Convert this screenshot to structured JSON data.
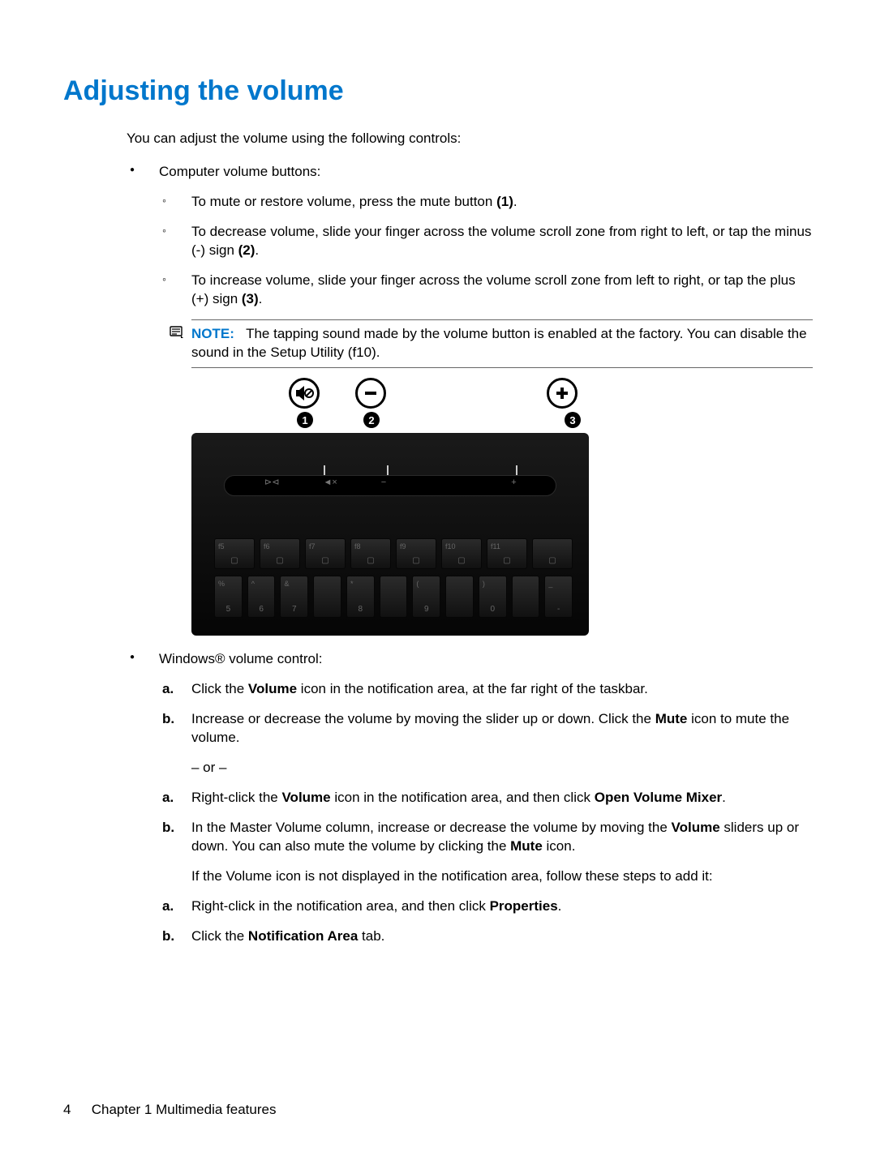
{
  "heading": "Adjusting the volume",
  "intro": "You can adjust the volume using the following controls:",
  "bullets": {
    "computer_label": "Computer volume buttons:",
    "sub": {
      "mute_a": "To mute or restore volume, press the mute button ",
      "mute_b": "(1)",
      "mute_c": ".",
      "dec_a": "To decrease volume, slide your finger across the volume scroll zone from right to left, or tap the minus (-) sign ",
      "dec_b": "(2)",
      "dec_c": ".",
      "inc_a": "To increase volume, slide your finger across the volume scroll zone from left to right, or tap the plus (+) sign ",
      "inc_b": "(3)",
      "inc_c": "."
    },
    "note_label": "NOTE:",
    "note_text": "The tapping sound made by the volume button is enabled at the factory. You can disable the sound in the Setup Utility (f10).",
    "windows_label": "Windows® volume control:",
    "win1": {
      "a1": "Click the ",
      "a2": "Volume",
      "a3": " icon in the notification area, at the far right of the taskbar.",
      "b1": "Increase or decrease the volume by moving the slider up or down. Click the ",
      "b2": "Mute",
      "b3": " icon to mute the volume."
    },
    "or": "– or –",
    "win2": {
      "a1": "Right-click the ",
      "a2": "Volume",
      "a3": " icon in the notification area, and then click ",
      "a4": "Open Volume Mixer",
      "a5": ".",
      "b1": "In the Master Volume column, increase or decrease the volume by moving the ",
      "b2": "Volume",
      "b3": " sliders up or down. You can also mute the volume by clicking the ",
      "b4": "Mute",
      "b5": " icon."
    },
    "subintro": "If the Volume icon is not displayed in the notification area, follow these steps to add it:",
    "win3": {
      "a1": "Right-click in the notification area, and then click ",
      "a2": "Properties",
      "a3": ".",
      "b1": "Click the ",
      "b2": "Notification Area",
      "b3": " tab."
    }
  },
  "figure": {
    "callouts": [
      "1",
      "2",
      "3"
    ],
    "fkeys_top": [
      "f5",
      "f6",
      "f7",
      "f8",
      "f9",
      "f10",
      "f11",
      ""
    ],
    "numrow_top": [
      "%",
      "^",
      "&",
      "",
      "*",
      "",
      "(",
      "",
      ")",
      "",
      "_"
    ],
    "numrow_bot": [
      "5",
      "6",
      "7",
      "",
      "8",
      "",
      "9",
      "",
      "0",
      "",
      "-"
    ]
  },
  "footer": {
    "page": "4",
    "chapter": "Chapter 1   Multimedia features"
  },
  "colors": {
    "heading": "#0077cc",
    "text": "#000000",
    "rule": "#666666"
  }
}
